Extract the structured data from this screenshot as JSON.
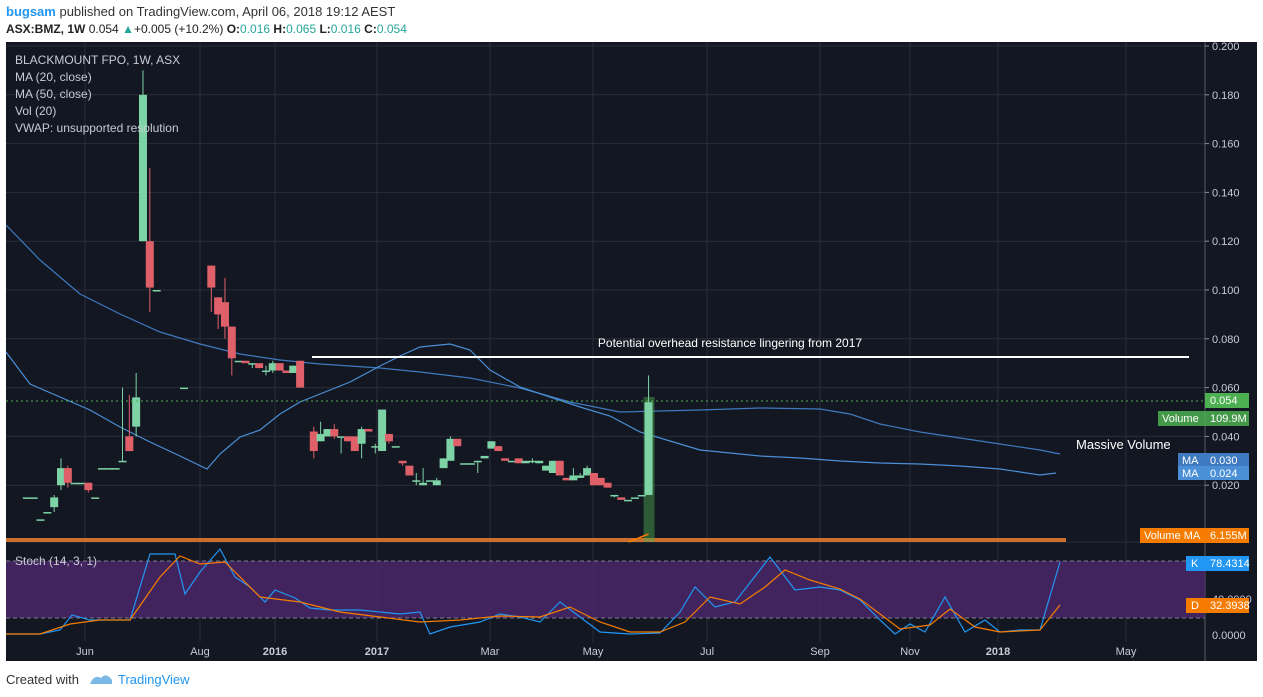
{
  "header": {
    "user": "bugsam",
    "published": "published on TradingView.com, April 06, 2018 19:12 AEST",
    "symbol": "ASX:BMZ, 1W",
    "last": "0.054",
    "change": "+0.005 (+10.2%)",
    "o_label": "O:",
    "o": "0.016",
    "h_label": "H:",
    "h": "0.065",
    "l_label": "L:",
    "l": "0.016",
    "c_label": "C:",
    "c": "0.054"
  },
  "legend": {
    "title": "BLACKMOUNT FPO, 1W, ASX",
    "ma20": "MA (20, close)",
    "ma50": "MA (50, close)",
    "vol": "Vol (20)",
    "vwap": "VWAP: unsupported resolution"
  },
  "annotations": {
    "resistance": "Potential overhead resistance lingering from 2017",
    "volume_note": "Massive Volume"
  },
  "price_tags": {
    "price": "0.054",
    "volume_label": "Volume",
    "volume": "109.9M",
    "ma1_label": "MA",
    "ma1": "0.030",
    "ma2_label": "MA",
    "ma2": "0.024",
    "volma_label": "Volume MA",
    "volma": "6.155M",
    "k_label": "K",
    "k": "78.4314",
    "d_label": "D",
    "d": "32.3938"
  },
  "stoch": {
    "title": "Stoch (14, 3, 1)"
  },
  "footer": {
    "created": "Created with",
    "brand": "TradingView"
  },
  "colors": {
    "bg": "#131722",
    "grid": "#2a2e39",
    "up": "#7ed3a6",
    "down": "#e0606a",
    "ma20": "#4b8fd6",
    "ma50": "#3f79bf",
    "k": "#2196f3",
    "d": "#f57c00",
    "stoch_band": "#4a2768",
    "volume_ma": "#f57c00"
  },
  "chart_data": {
    "type": "candlestick",
    "title": "BLACKMOUNT FPO, 1W, ASX",
    "price_ticks": [
      "0.200",
      "0.180",
      "0.160",
      "0.140",
      "0.120",
      "0.100",
      "0.080",
      "0.060",
      "0.040",
      "0.020"
    ],
    "stoch_ticks": [
      "40.0000",
      "0.0000"
    ],
    "x_ticks": [
      "Jun",
      "Aug",
      "2016",
      "2017",
      "Mar",
      "May",
      "Jul",
      "Sep",
      "Nov",
      "2018",
      "May"
    ],
    "ylim": [
      0,
      0.2
    ],
    "resistance_level": 0.071,
    "candles": [
      {
        "d": "2015-04-20",
        "o": 0.015,
        "h": 0.015,
        "l": 0.015,
        "c": 0.015
      },
      {
        "d": "2015-04-27",
        "o": 0.015,
        "h": 0.015,
        "l": 0.015,
        "c": 0.015
      },
      {
        "d": "2015-05-04",
        "o": 0.006,
        "h": 0.006,
        "l": 0.006,
        "c": 0.006
      },
      {
        "d": "2015-05-11",
        "o": 0.009,
        "h": 0.009,
        "l": 0.009,
        "c": 0.009
      },
      {
        "d": "2015-05-18",
        "o": 0.011,
        "h": 0.016,
        "l": 0.009,
        "c": 0.015
      },
      {
        "d": "2015-05-25",
        "o": 0.02,
        "h": 0.031,
        "l": 0.018,
        "c": 0.027
      },
      {
        "d": "2015-06-01",
        "o": 0.027,
        "h": 0.028,
        "l": 0.019,
        "c": 0.021
      },
      {
        "d": "2015-06-08",
        "o": 0.021,
        "h": 0.021,
        "l": 0.021,
        "c": 0.021
      },
      {
        "d": "2015-06-15",
        "o": 0.021,
        "h": 0.021,
        "l": 0.021,
        "c": 0.021
      },
      {
        "d": "2015-06-22",
        "o": 0.021,
        "h": 0.021,
        "l": 0.017,
        "c": 0.018
      },
      {
        "d": "2015-06-29",
        "o": 0.015,
        "h": 0.015,
        "l": 0.015,
        "c": 0.015
      },
      {
        "d": "2015-07-06",
        "o": 0.027,
        "h": 0.027,
        "l": 0.027,
        "c": 0.027
      },
      {
        "d": "2015-07-13",
        "o": 0.027,
        "h": 0.027,
        "l": 0.027,
        "c": 0.027
      },
      {
        "d": "2015-07-20",
        "o": 0.027,
        "h": 0.027,
        "l": 0.027,
        "c": 0.027
      },
      {
        "d": "2015-07-27",
        "o": 0.03,
        "h": 0.06,
        "l": 0.03,
        "c": 0.03
      },
      {
        "d": "2015-08-03",
        "o": 0.04,
        "h": 0.057,
        "l": 0.034,
        "c": 0.034
      },
      {
        "d": "2015-08-10",
        "o": 0.044,
        "h": 0.066,
        "l": 0.04,
        "c": 0.056
      },
      {
        "d": "2015-08-17",
        "o": 0.12,
        "h": 0.19,
        "l": 0.12,
        "c": 0.18
      },
      {
        "d": "2015-08-24",
        "o": 0.12,
        "h": 0.15,
        "l": 0.091,
        "c": 0.101
      },
      {
        "d": "2015-08-31",
        "o": 0.1,
        "h": 0.1,
        "l": 0.1,
        "c": 0.1
      },
      {
        "d": "2015-09-28",
        "o": 0.06,
        "h": 0.06,
        "l": 0.06,
        "c": 0.06
      },
      {
        "d": "2015-10-26",
        "o": 0.11,
        "h": 0.11,
        "l": 0.091,
        "c": 0.101
      },
      {
        "d": "2015-11-02",
        "o": 0.097,
        "h": 0.097,
        "l": 0.084,
        "c": 0.09
      },
      {
        "d": "2015-11-09",
        "o": 0.095,
        "h": 0.105,
        "l": 0.08,
        "c": 0.085
      },
      {
        "d": "2015-11-16",
        "o": 0.085,
        "h": 0.085,
        "l": 0.065,
        "c": 0.072
      },
      {
        "d": "2015-11-23",
        "o": 0.071,
        "h": 0.071,
        "l": 0.071,
        "c": 0.071
      },
      {
        "d": "2015-11-30",
        "o": 0.071,
        "h": 0.071,
        "l": 0.071,
        "c": 0.07
      },
      {
        "d": "2015-12-07",
        "o": 0.07,
        "h": 0.07,
        "l": 0.068,
        "c": 0.07
      },
      {
        "d": "2015-12-14",
        "o": 0.07,
        "h": 0.07,
        "l": 0.068,
        "c": 0.068
      },
      {
        "d": "2015-12-21",
        "o": 0.067,
        "h": 0.069,
        "l": 0.065,
        "c": 0.067
      },
      {
        "d": "2015-12-28",
        "o": 0.067,
        "h": 0.071,
        "l": 0.066,
        "c": 0.07
      },
      {
        "d": "2016-01-04",
        "o": 0.07,
        "h": 0.07,
        "l": 0.067,
        "c": 0.067
      },
      {
        "d": "2016-01-11",
        "o": 0.067,
        "h": 0.067,
        "l": 0.066,
        "c": 0.066
      },
      {
        "d": "2016-01-18",
        "o": 0.066,
        "h": 0.068,
        "l": 0.066,
        "c": 0.069
      },
      {
        "d": "2016-01-25",
        "o": 0.071,
        "h": 0.071,
        "l": 0.06,
        "c": 0.06
      },
      {
        "d": "2016-02-08",
        "o": 0.042,
        "h": 0.044,
        "l": 0.031,
        "c": 0.034
      },
      {
        "d": "2016-02-15",
        "o": 0.038,
        "h": 0.046,
        "l": 0.038,
        "c": 0.041
      },
      {
        "d": "2016-02-22",
        "o": 0.04,
        "h": 0.043,
        "l": 0.04,
        "c": 0.043
      },
      {
        "d": "2016-02-29",
        "o": 0.043,
        "h": 0.045,
        "l": 0.039,
        "c": 0.04
      },
      {
        "d": "2016-03-07",
        "o": 0.04,
        "h": 0.04,
        "l": 0.033,
        "c": 0.04
      },
      {
        "d": "2016-03-14",
        "o": 0.04,
        "h": 0.04,
        "l": 0.038,
        "c": 0.038
      },
      {
        "d": "2016-03-21",
        "o": 0.04,
        "h": 0.04,
        "l": 0.034,
        "c": 0.034
      },
      {
        "d": "2016-03-28",
        "o": 0.037,
        "h": 0.044,
        "l": 0.031,
        "c": 0.043
      },
      {
        "d": "2016-04-04",
        "o": 0.043,
        "h": 0.043,
        "l": 0.042,
        "c": 0.042
      },
      {
        "d": "2016-04-11",
        "o": 0.036,
        "h": 0.037,
        "l": 0.033,
        "c": 0.036
      },
      {
        "d": "2016-04-18",
        "o": 0.034,
        "h": 0.051,
        "l": 0.034,
        "c": 0.051
      },
      {
        "d": "2016-04-25",
        "o": 0.041,
        "h": 0.041,
        "l": 0.037,
        "c": 0.038
      },
      {
        "d": "2016-05-02",
        "o": 0.036,
        "h": 0.036,
        "l": 0.036,
        "c": 0.036
      },
      {
        "d": "2016-05-09",
        "o": 0.03,
        "h": 0.03,
        "l": 0.028,
        "c": 0.029
      },
      {
        "d": "2016-05-16",
        "o": 0.028,
        "h": 0.028,
        "l": 0.024,
        "c": 0.024
      },
      {
        "d": "2016-05-23",
        "o": 0.022,
        "h": 0.025,
        "l": 0.02,
        "c": 0.022
      },
      {
        "d": "2016-05-30",
        "o": 0.02,
        "h": 0.027,
        "l": 0.02,
        "c": 0.021
      },
      {
        "d": "2016-06-06",
        "o": 0.022,
        "h": 0.022,
        "l": 0.022,
        "c": 0.022
      },
      {
        "d": "2016-06-13",
        "o": 0.02,
        "h": 0.023,
        "l": 0.02,
        "c": 0.022
      },
      {
        "d": "2016-06-20",
        "o": 0.027,
        "h": 0.031,
        "l": 0.027,
        "c": 0.031
      },
      {
        "d": "2016-06-27",
        "o": 0.03,
        "h": 0.04,
        "l": 0.03,
        "c": 0.039
      },
      {
        "d": "2016-07-04",
        "o": 0.039,
        "h": 0.039,
        "l": 0.036,
        "c": 0.036
      },
      {
        "d": "2016-07-11",
        "o": 0.029,
        "h": 0.029,
        "l": 0.029,
        "c": 0.029
      },
      {
        "d": "2016-07-18",
        "o": 0.029,
        "h": 0.029,
        "l": 0.029,
        "c": 0.029
      },
      {
        "d": "2016-07-25",
        "o": 0.03,
        "h": 0.03,
        "l": 0.025,
        "c": 0.03
      },
      {
        "d": "2016-08-01",
        "o": 0.031,
        "h": 0.032,
        "l": 0.031,
        "c": 0.032
      },
      {
        "d": "2016-08-08",
        "o": 0.035,
        "h": 0.038,
        "l": 0.035,
        "c": 0.038
      },
      {
        "d": "2016-08-15",
        "o": 0.036,
        "h": 0.036,
        "l": 0.034,
        "c": 0.034
      },
      {
        "d": "2016-08-22",
        "o": 0.031,
        "h": 0.031,
        "l": 0.03,
        "c": 0.03
      },
      {
        "d": "2016-08-29",
        "o": 0.03,
        "h": 0.03,
        "l": 0.03,
        "c": 0.03
      },
      {
        "d": "2016-09-05",
        "o": 0.031,
        "h": 0.031,
        "l": 0.029,
        "c": 0.029
      },
      {
        "d": "2016-09-12",
        "o": 0.029,
        "h": 0.03,
        "l": 0.029,
        "c": 0.03
      },
      {
        "d": "2016-09-19",
        "o": 0.03,
        "h": 0.031,
        "l": 0.029,
        "c": 0.03
      },
      {
        "d": "2016-09-26",
        "o": 0.029,
        "h": 0.03,
        "l": 0.029,
        "c": 0.03
      },
      {
        "d": "2016-10-03",
        "o": 0.026,
        "h": 0.028,
        "l": 0.026,
        "c": 0.028
      },
      {
        "d": "2016-10-10",
        "o": 0.025,
        "h": 0.03,
        "l": 0.025,
        "c": 0.03
      },
      {
        "d": "2016-10-17",
        "o": 0.03,
        "h": 0.03,
        "l": 0.024,
        "c": 0.024
      },
      {
        "d": "2016-10-24",
        "o": 0.023,
        "h": 0.023,
        "l": 0.022,
        "c": 0.022
      },
      {
        "d": "2016-10-31",
        "o": 0.022,
        "h": 0.027,
        "l": 0.022,
        "c": 0.024
      },
      {
        "d": "2016-11-07",
        "o": 0.023,
        "h": 0.025,
        "l": 0.023,
        "c": 0.024
      },
      {
        "d": "2016-11-14",
        "o": 0.024,
        "h": 0.028,
        "l": 0.024,
        "c": 0.027
      },
      {
        "d": "2016-11-21",
        "o": 0.025,
        "h": 0.025,
        "l": 0.02,
        "c": 0.02
      },
      {
        "d": "2016-11-28",
        "o": 0.023,
        "h": 0.023,
        "l": 0.02,
        "c": 0.02
      },
      {
        "d": "2016-12-05",
        "o": 0.021,
        "h": 0.021,
        "l": 0.019,
        "c": 0.019
      },
      {
        "d": "2016-12-12",
        "o": 0.016,
        "h": 0.016,
        "l": 0.015,
        "c": 0.016
      },
      {
        "d": "2016-12-19",
        "o": 0.015,
        "h": 0.015,
        "l": 0.014,
        "c": 0.014
      },
      {
        "d": "2016-12-26",
        "o": 0.014,
        "h": 0.014,
        "l": 0.014,
        "c": 0.014
      },
      {
        "d": "2017-01-02",
        "o": 0.015,
        "h": 0.015,
        "l": 0.015,
        "c": 0.015
      },
      {
        "d": "2017-01-09",
        "o": 0.016,
        "h": 0.016,
        "l": 0.016,
        "c": 0.016
      },
      {
        "d": "2017-01-16",
        "o": 0.016,
        "h": 0.065,
        "l": 0.016,
        "c": 0.054
      }
    ],
    "volume_ma_latest": "6.155M",
    "volume_latest": "109.9M",
    "ma20_latest": 0.03,
    "ma50_latest": 0.024,
    "stoch_k_latest": 78.4314,
    "stoch_d_latest": 32.3938
  }
}
